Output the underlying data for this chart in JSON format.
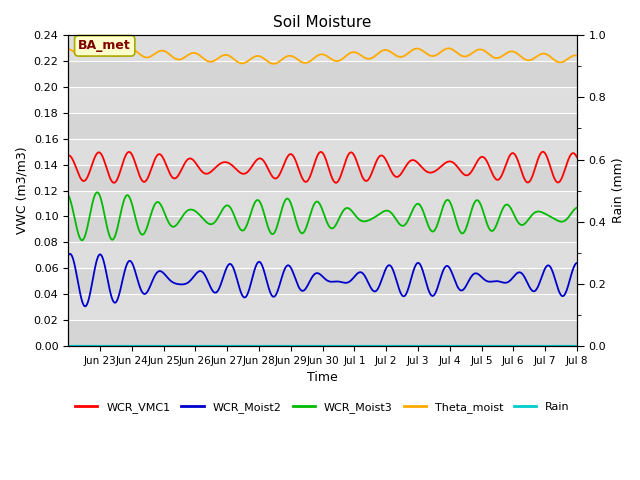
{
  "title": "Soil Moisture",
  "ylabel_left": "VWC (m3/m3)",
  "ylabel_right": "Rain (mm)",
  "xlabel": "Time",
  "ylim_left": [
    0.0,
    0.24
  ],
  "ylim_right": [
    0.0,
    1.0
  ],
  "yticks_left": [
    0.0,
    0.02,
    0.04,
    0.06,
    0.08,
    0.1,
    0.12,
    0.14,
    0.16,
    0.18,
    0.2,
    0.22,
    0.24
  ],
  "yticks_right": [
    0.0,
    0.2,
    0.4,
    0.6,
    0.8,
    1.0
  ],
  "bg_color": "#dcdcdc",
  "annotation_text": "BA_met",
  "annotation_color": "#800000",
  "annotation_bg": "#ffffcc",
  "annotation_edge": "#aaaa00",
  "legend_colors": {
    "WCR_VMC1": "#ff0000",
    "WCR_Moist2": "#0000cc",
    "WCR_Moist3": "#00bb00",
    "Theta_moist": "#ffaa00",
    "Rain": "#00cccc"
  },
  "n_days": 16,
  "wcr_vmc1": {
    "base": 0.138,
    "amp1": 0.008,
    "amp2": 0.004,
    "f1": 1.0,
    "f2": 1.15,
    "phase1": 2.0,
    "phase2": 0.5
  },
  "wcr_moist2": {
    "base": 0.051,
    "amp1": 0.007,
    "amp2": 0.006,
    "f1": 1.0,
    "f2": 1.2,
    "phase1": 1.5,
    "phase2": 0.3,
    "early_amp": 0.01,
    "early_decay": 2.5
  },
  "wcr_moist3": {
    "base": 0.1,
    "amp1": 0.008,
    "amp2": 0.005,
    "f1": 1.0,
    "f2": 1.18,
    "phase1": 2.2,
    "phase2": 0.8,
    "early_amp": 0.008,
    "early_decay": 3.0
  },
  "theta": {
    "base": 0.224,
    "amp": 0.003,
    "freq": 1.0,
    "phase": 1.8,
    "trend_amp": 0.003
  }
}
